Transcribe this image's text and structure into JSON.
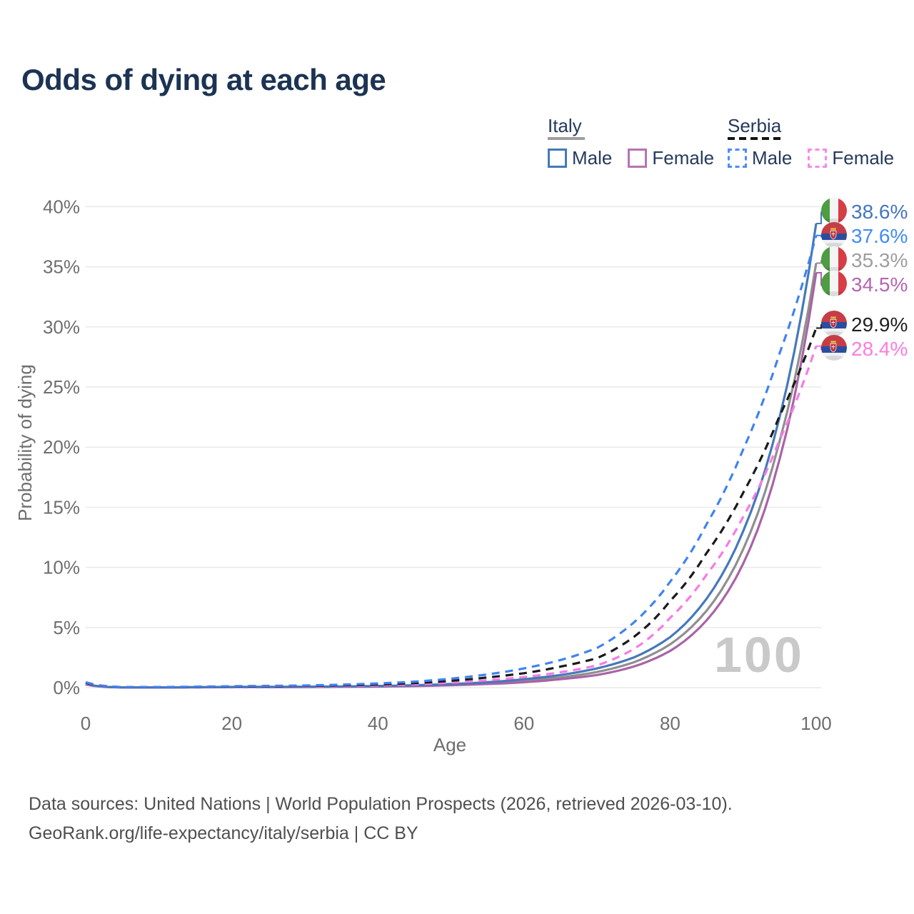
{
  "title": "Odds of dying at each age",
  "watermark": "100",
  "legend": {
    "groups": [
      {
        "label": "Italy",
        "line_style": "solid",
        "underline_color": "#9e9e9e",
        "items": [
          {
            "label": "Male",
            "color": "#4579b9"
          },
          {
            "label": "Female",
            "color": "#b673b2"
          }
        ]
      },
      {
        "label": "Serbia",
        "line_style": "dashed",
        "underline_color": "#141414",
        "items": [
          {
            "label": "Male",
            "color": "#4e8cf4"
          },
          {
            "label": "Female",
            "color": "#fb87e6"
          }
        ]
      }
    ]
  },
  "footer": {
    "line1": "Data sources: United Nations | World Population Prospects (2026, retrieved 2026-03-10).",
    "line2": "GeoRank.org/life-expectancy/italy/serbia | CC BY"
  },
  "chart_data": {
    "type": "line",
    "title": "Odds of dying at each age",
    "xlabel": "Age",
    "ylabel": "Probability of dying",
    "xlim": [
      0,
      100
    ],
    "ylim": [
      0,
      40
    ],
    "grid": true,
    "x_ticks": [
      0,
      20,
      40,
      60,
      80,
      100
    ],
    "x_tick_labels": [
      "0",
      "20",
      "40",
      "60",
      "80",
      "100"
    ],
    "y_ticks": [
      0,
      5,
      10,
      15,
      20,
      25,
      30,
      35,
      40
    ],
    "y_tick_labels": [
      "0%",
      "5%",
      "10%",
      "15%",
      "20%",
      "25%",
      "30%",
      "35%",
      "40%"
    ],
    "ages": [
      0,
      5,
      10,
      15,
      20,
      25,
      30,
      35,
      40,
      45,
      50,
      55,
      60,
      65,
      70,
      75,
      80,
      85,
      90,
      95,
      100
    ],
    "series": [
      {
        "name": "Italy Male",
        "country": "Italy",
        "sex": "male",
        "flag": "italy",
        "dash": false,
        "color": "#4579b9",
        "label_color": "#4575bc",
        "end_label": "38.6%",
        "end_value": 38.6,
        "values": [
          0.32,
          0.02,
          0.02,
          0.04,
          0.06,
          0.07,
          0.08,
          0.1,
          0.14,
          0.2,
          0.3,
          0.45,
          0.7,
          1.05,
          1.6,
          2.5,
          4.2,
          7.4,
          13.0,
          22.5,
          38.6
        ]
      },
      {
        "name": "Serbia Male",
        "country": "Serbia",
        "sex": "male",
        "flag": "serbia",
        "dash": true,
        "color": "#3f83f1",
        "label_color": "#428bf5",
        "end_label": "37.6%",
        "end_value": 37.6,
        "values": [
          0.45,
          0.05,
          0.05,
          0.08,
          0.12,
          0.15,
          0.18,
          0.25,
          0.35,
          0.5,
          0.75,
          1.1,
          1.6,
          2.3,
          3.3,
          5.4,
          8.8,
          13.6,
          19.8,
          27.8,
          37.6
        ]
      },
      {
        "name": "Italy (both sexes)",
        "country": "Italy",
        "sex": "all",
        "flag": "italy",
        "dash": false,
        "color": "#8f8f8f",
        "label_color": "#9e9e9e",
        "end_label": "35.3%",
        "end_value": 35.3,
        "values": [
          0.29,
          0.02,
          0.02,
          0.03,
          0.05,
          0.05,
          0.06,
          0.08,
          0.11,
          0.16,
          0.24,
          0.36,
          0.55,
          0.85,
          1.3,
          2.1,
          3.6,
          6.4,
          11.5,
          20.5,
          35.3
        ]
      },
      {
        "name": "Italy Female",
        "country": "Italy",
        "sex": "female",
        "flag": "italy",
        "dash": false,
        "color": "#a963a6",
        "label_color": "#b565b0",
        "end_label": "34.5%",
        "end_value": 34.5,
        "values": [
          0.26,
          0.02,
          0.02,
          0.03,
          0.04,
          0.04,
          0.05,
          0.07,
          0.09,
          0.13,
          0.2,
          0.3,
          0.45,
          0.7,
          1.05,
          1.75,
          3.05,
          5.6,
          10.3,
          19.0,
          34.5
        ]
      },
      {
        "name": "Serbia (both sexes)",
        "country": "Serbia",
        "sex": "all",
        "flag": "serbia",
        "dash": true,
        "color": "#1a1a1a",
        "label_color": "#1f1f1f",
        "end_label": "29.9%",
        "end_value": 29.9,
        "values": [
          0.4,
          0.04,
          0.04,
          0.06,
          0.09,
          0.11,
          0.14,
          0.19,
          0.26,
          0.38,
          0.57,
          0.85,
          1.2,
          1.75,
          2.45,
          4.2,
          7.2,
          11.2,
          16.2,
          22.6,
          29.9
        ]
      },
      {
        "name": "Serbia Female",
        "country": "Serbia",
        "sex": "female",
        "flag": "serbia",
        "dash": true,
        "color": "#f87ae3",
        "label_color": "#fc7ce0",
        "end_label": "28.4%",
        "end_value": 28.4,
        "values": [
          0.36,
          0.03,
          0.03,
          0.05,
          0.06,
          0.08,
          0.1,
          0.13,
          0.18,
          0.27,
          0.42,
          0.62,
          0.88,
          1.28,
          1.85,
          3.2,
          5.8,
          9.4,
          14.2,
          20.6,
          28.4
        ]
      }
    ],
    "legend_position": "top-right",
    "grid_color": "#e9e9e9",
    "axis_text_color": "#6e6e6e",
    "watermark_color": "#c9c9c9"
  }
}
